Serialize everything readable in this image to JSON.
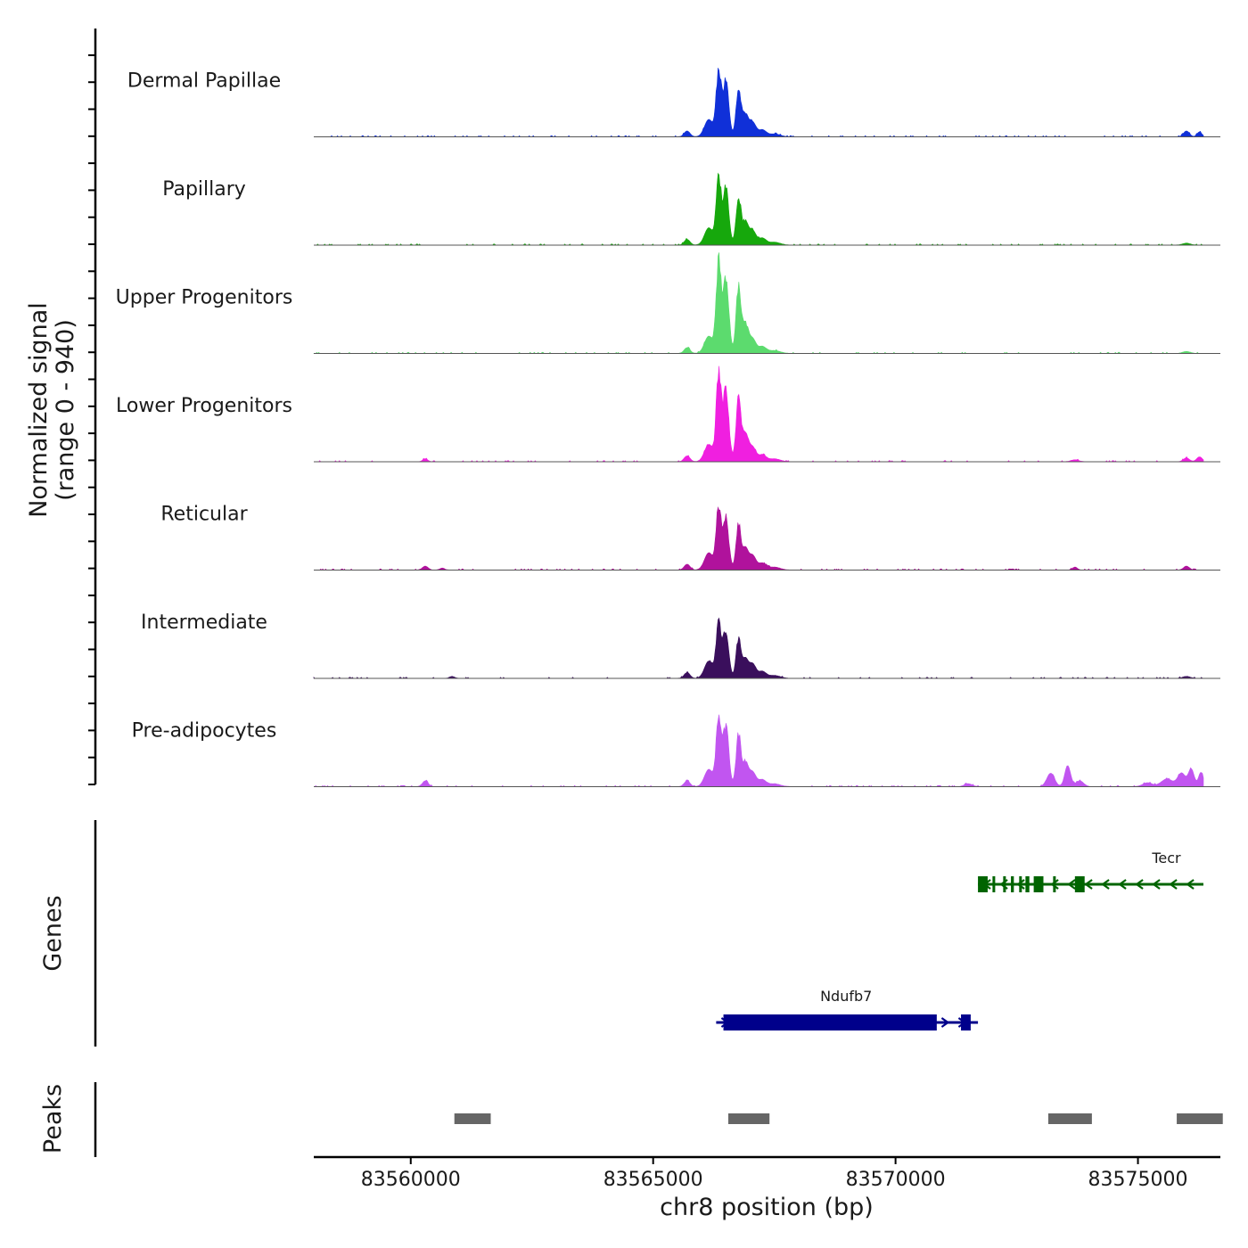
{
  "chart_data": {
    "type": "area",
    "title": "",
    "ylabel_line1": "Normalized signal",
    "ylabel_line2": "(range 0 - 940)",
    "ylim": [
      0,
      940
    ],
    "xlabel": "chr8 position (bp)",
    "xlim": [
      83558000,
      83576700
    ],
    "x_ticks": [
      83560000,
      83565000,
      83570000,
      83575000
    ],
    "x_tick_labels": [
      "83560000",
      "83565000",
      "83570000",
      "83575000"
    ],
    "signal_range_bp": [
      83558000,
      83576350
    ],
    "peaks_template": [
      {
        "center": 83565700,
        "height": 0.06,
        "width": 60
      },
      {
        "center": 83566150,
        "height": 0.18,
        "width": 90
      },
      {
        "center": 83566350,
        "height": 0.95,
        "width": 50
      },
      {
        "center": 83566500,
        "height": 0.82,
        "width": 60
      },
      {
        "center": 83566760,
        "height": 0.7,
        "width": 50
      },
      {
        "center": 83566900,
        "height": 0.32,
        "width": 60
      },
      {
        "center": 83567050,
        "height": 0.15,
        "width": 70
      },
      {
        "center": 83567250,
        "height": 0.07,
        "width": 80
      },
      {
        "center": 83567500,
        "height": 0.03,
        "width": 120
      }
    ],
    "series": [
      {
        "name": "Dermal Papillae",
        "color": "#1030d8",
        "scale": 0.72,
        "extra_peaks": [
          {
            "center": 83576000,
            "height": 0.06,
            "width": 60
          },
          {
            "center": 83576270,
            "height": 0.05,
            "width": 50
          }
        ]
      },
      {
        "name": "Papillary",
        "color": "#16a80c",
        "scale": 0.74,
        "extra_peaks": [
          {
            "center": 83576000,
            "height": 0.02,
            "width": 80
          }
        ]
      },
      {
        "name": "Upper Progenitors",
        "color": "#5cdb6e",
        "scale": 1.0,
        "extra_peaks": [
          {
            "center": 83576000,
            "height": 0.02,
            "width": 80
          }
        ]
      },
      {
        "name": "Lower Progenitors",
        "color": "#f01fe0",
        "scale": 0.96,
        "extra_peaks": [
          {
            "center": 83560300,
            "height": 0.03,
            "width": 50
          },
          {
            "center": 83576000,
            "height": 0.04,
            "width": 60
          },
          {
            "center": 83576270,
            "height": 0.05,
            "width": 60
          },
          {
            "center": 83573700,
            "height": 0.02,
            "width": 80
          }
        ]
      },
      {
        "name": "Reticular",
        "color": "#b0129c",
        "scale": 0.69,
        "extra_peaks": [
          {
            "center": 83560300,
            "height": 0.04,
            "width": 60
          },
          {
            "center": 83560650,
            "height": 0.02,
            "width": 50
          },
          {
            "center": 83573700,
            "height": 0.03,
            "width": 50
          },
          {
            "center": 83576000,
            "height": 0.04,
            "width": 60
          }
        ]
      },
      {
        "name": "Intermediate",
        "color": "#3a0f5c",
        "scale": 0.61,
        "extra_peaks": [
          {
            "center": 83560850,
            "height": 0.02,
            "width": 50
          },
          {
            "center": 83576000,
            "height": 0.02,
            "width": 80
          }
        ]
      },
      {
        "name": "Pre-adipocytes",
        "color": "#c155f0",
        "scale": 0.78,
        "extra_peaks": [
          {
            "center": 83560300,
            "height": 0.06,
            "width": 60
          },
          {
            "center": 83571500,
            "height": 0.03,
            "width": 80
          },
          {
            "center": 83573200,
            "height": 0.14,
            "width": 80
          },
          {
            "center": 83573550,
            "height": 0.28,
            "width": 60
          },
          {
            "center": 83573800,
            "height": 0.06,
            "width": 80
          },
          {
            "center": 83575200,
            "height": 0.04,
            "width": 100
          },
          {
            "center": 83575600,
            "height": 0.08,
            "width": 120
          },
          {
            "center": 83575900,
            "height": 0.14,
            "width": 80
          },
          {
            "center": 83576100,
            "height": 0.18,
            "width": 60
          },
          {
            "center": 83576300,
            "height": 0.15,
            "width": 50
          }
        ]
      }
    ],
    "genes_title": "Genes",
    "genes": [
      {
        "name": "Tecr",
        "strand": "-",
        "start": 83571700,
        "end": 83576350,
        "color": "#006400",
        "exons": [
          [
            83571700,
            83571900
          ],
          [
            83572000,
            83572040
          ],
          [
            83572220,
            83572260
          ],
          [
            83572380,
            83572440
          ],
          [
            83572550,
            83572590
          ],
          [
            83572680,
            83572760
          ],
          [
            83572850,
            83573050
          ],
          [
            83573250,
            83573300
          ],
          [
            83573700,
            83573900
          ]
        ]
      },
      {
        "name": "Ndufb7",
        "strand": "+",
        "start": 83566300,
        "end": 83571700,
        "color": "#00008b",
        "exons": [
          [
            83566450,
            83570850
          ],
          [
            83571350,
            83571550
          ]
        ]
      }
    ],
    "peaks_title": "Peaks",
    "peak_regions": [
      [
        83560900,
        83561650
      ],
      [
        83566550,
        83567400
      ],
      [
        83573150,
        83574050
      ],
      [
        83575800,
        83576750
      ]
    ],
    "peak_color": "#666666"
  }
}
